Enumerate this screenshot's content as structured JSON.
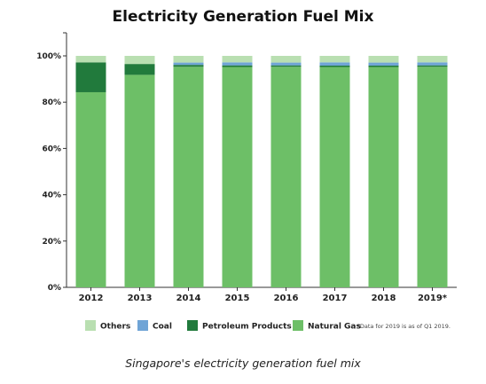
{
  "chart_data": {
    "type": "bar",
    "stacked": true,
    "title": "Electricity Generation Fuel Mix",
    "xlabel": "",
    "ylabel": "",
    "ylim": [
      0,
      100
    ],
    "yticks": [
      0,
      20,
      40,
      60,
      80,
      100
    ],
    "ytick_labels": [
      "0%",
      "20%",
      "40%",
      "60%",
      "80%",
      "100%"
    ],
    "grid": false,
    "legend": "bottom",
    "categories": [
      "2012",
      "2013",
      "2014",
      "2015",
      "2016",
      "2017",
      "2018",
      "2019*"
    ],
    "series": [
      {
        "name": "Natural Gas",
        "color": "#6dbf67",
        "values": [
          84.3,
          91.8,
          95.3,
          95.2,
          95.3,
          95.2,
          95.2,
          95.3
        ]
      },
      {
        "name": "Petroleum Products",
        "color": "#217a3c",
        "values": [
          12.9,
          4.7,
          0.8,
          0.7,
          0.6,
          0.6,
          0.6,
          0.6
        ]
      },
      {
        "name": "Coal",
        "color": "#6fa4d6",
        "values": [
          0.0,
          0.0,
          1.0,
          1.3,
          1.2,
          1.4,
          1.3,
          1.3
        ]
      },
      {
        "name": "Others",
        "color": "#b9dfb1",
        "values": [
          2.8,
          3.5,
          2.9,
          2.8,
          2.9,
          2.8,
          2.9,
          2.8
        ]
      }
    ],
    "legend_order": [
      "Others",
      "Coal",
      "Petroleum Products",
      "Natural Gas"
    ],
    "footnote": "*Data for 2019 is as of Q1 2019."
  },
  "caption": "Singapore's electricity generation fuel mix"
}
